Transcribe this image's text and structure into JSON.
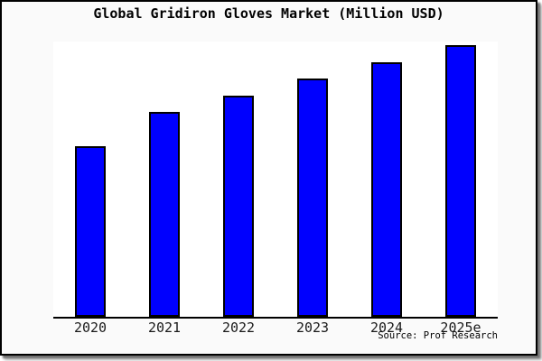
{
  "chart_data": {
    "type": "bar",
    "title": "Global Gridiron Gloves Market (Million USD)",
    "categories": [
      "2020",
      "2021",
      "2022",
      "2023",
      "2024",
      "2025e"
    ],
    "values": [
      62.8,
      75.4,
      81.4,
      87.7,
      93.7,
      100.0
    ],
    "value_units": "relative index (no y-axis or value labels shown in chart; 2025e bar = 100)",
    "xlabel": "",
    "ylabel": "",
    "ylim": [
      0,
      101.5
    ],
    "grid": false,
    "legend": false,
    "bar_color": "#0000fe",
    "bar_border_color": "#000000"
  },
  "source": "Source: Prof Research",
  "colors": {
    "figure_background": "#fafafa",
    "plot_background": "#ffffff",
    "frame_border": "#000000",
    "axis_line": "#000000",
    "title_text": "#000000",
    "tick_label_text": "#1a1a1a"
  }
}
